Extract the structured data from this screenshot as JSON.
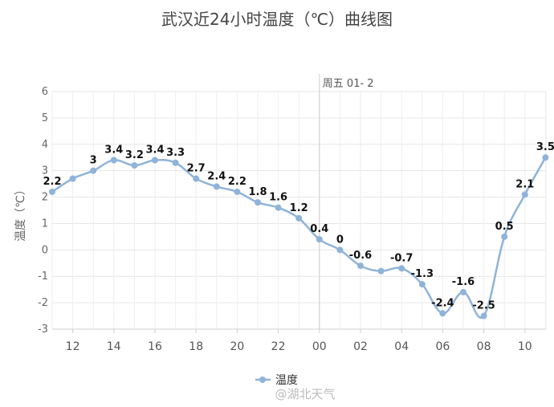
{
  "chart_data": {
    "type": "line",
    "title": "武汉近24小时温度（℃）曲线图",
    "ylabel": "温度（℃）",
    "xlabel": "",
    "ylim": [
      -3,
      6
    ],
    "yticks": [
      -3,
      -2,
      -1,
      0,
      1,
      2,
      3,
      4,
      5,
      6
    ],
    "xticks": [
      "12",
      "14",
      "16",
      "18",
      "20",
      "22",
      "00",
      "02",
      "04",
      "06",
      "08",
      "10"
    ],
    "grid": true,
    "legend": "bottom",
    "color": "#8fb3d9",
    "series": [
      {
        "name": "温度",
        "x": [
          "11",
          "12",
          "13",
          "14",
          "15",
          "16",
          "17",
          "18",
          "19",
          "20",
          "21",
          "22",
          "23",
          "00",
          "01",
          "02",
          "03",
          "04",
          "05",
          "06",
          "07",
          "08",
          "09",
          "10",
          "11"
        ],
        "values": [
          2.2,
          2.7,
          3,
          3.4,
          3.2,
          3.4,
          3.3,
          2.7,
          2.4,
          2.2,
          1.8,
          1.6,
          1.2,
          0.4,
          0,
          -0.6,
          -0.8,
          -0.7,
          -1.3,
          -2.4,
          -1.6,
          -2.5,
          0.5,
          2.1,
          3.5
        ],
        "labels": [
          "2.2",
          "",
          "3",
          "3.4",
          "3.2",
          "3.4",
          "3.3",
          "2.7",
          "2.4",
          "2.2",
          "1.8",
          "1.6",
          "1.2",
          "0.4",
          "0",
          "-0.6",
          "",
          "-0.7",
          "-1.3",
          "-2.4",
          "-1.6",
          "-2.5",
          "0.5",
          "2.1",
          "3.5"
        ]
      }
    ],
    "annotation": {
      "at": "00",
      "text": "周五 01- 2"
    }
  },
  "watermark": "@湖北天气"
}
